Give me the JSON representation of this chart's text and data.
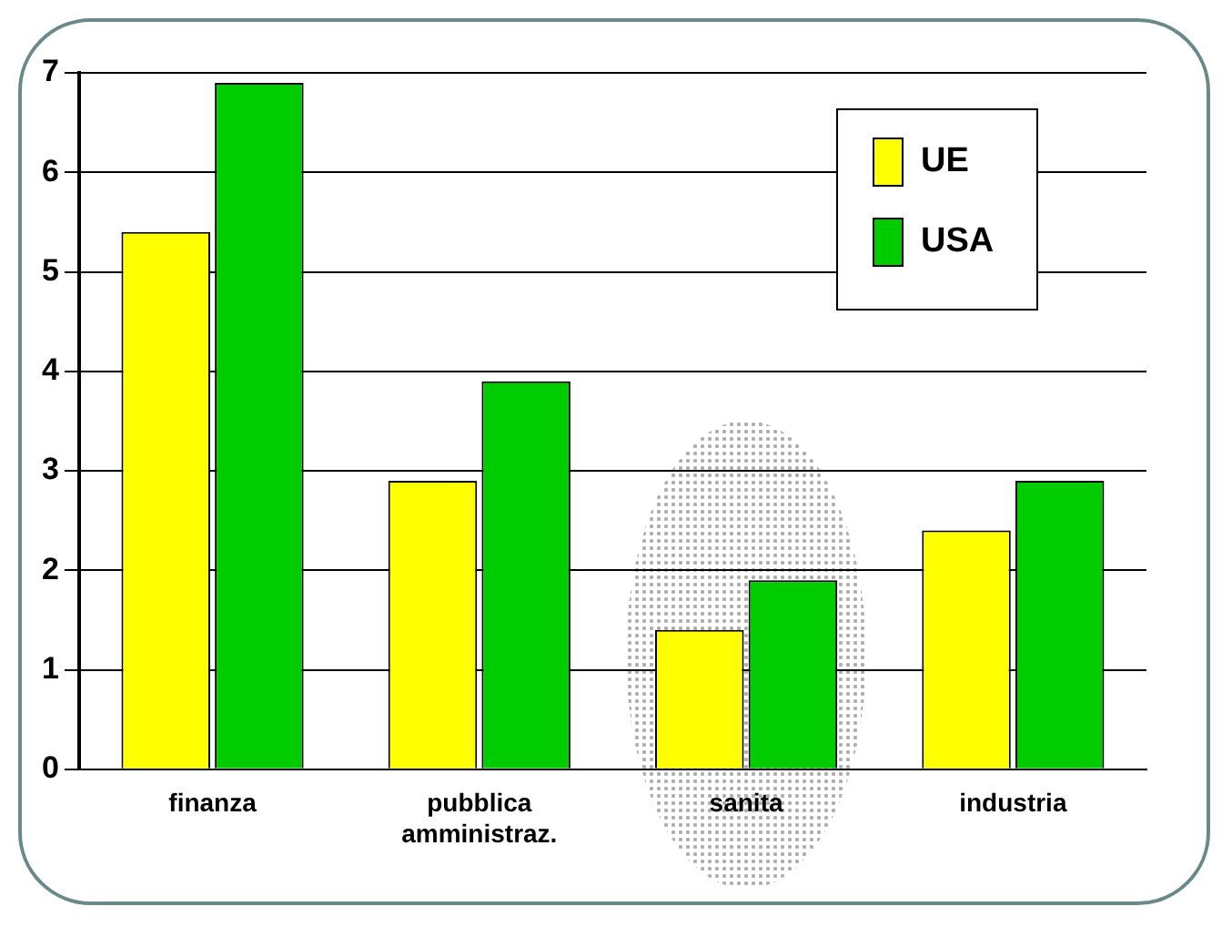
{
  "chart_data": {
    "type": "bar",
    "categories": [
      "finanza",
      "pubblica\namministraz.",
      "sanita",
      "industria"
    ],
    "series": [
      {
        "name": "UE",
        "color": "#ffff00",
        "values": [
          5.4,
          2.9,
          1.4,
          2.4
        ]
      },
      {
        "name": "USA",
        "color": "#00cc00",
        "values": [
          6.9,
          3.9,
          1.9,
          2.9
        ]
      }
    ],
    "ylim": [
      0,
      7
    ],
    "yticks": [
      0,
      1,
      2,
      3,
      4,
      5,
      6,
      7
    ],
    "grid": "y",
    "legend": "top right",
    "bands": [
      {
        "axis": "x",
        "from": "sanita",
        "to": "sanita",
        "color": "#b0b0b0"
      }
    ]
  }
}
